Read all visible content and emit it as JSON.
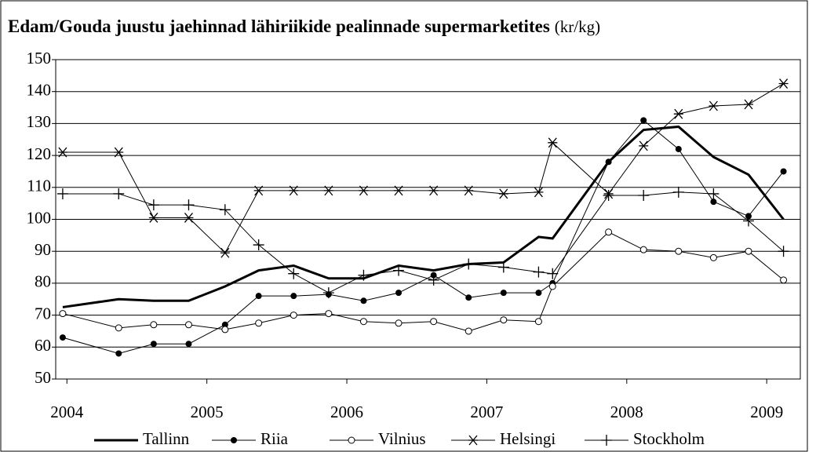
{
  "chart_data": {
    "type": "line",
    "title": "Edam/Gouda juustu jaehinnad lähiriikide pealinnade supermarketites",
    "unit": "(kr/kg)",
    "x": [
      2003.97,
      2004.37,
      2004.62,
      2004.87,
      2005.13,
      2005.37,
      2005.62,
      2005.87,
      2006.12,
      2006.37,
      2006.62,
      2006.87,
      2007.12,
      2007.37,
      2007.47,
      2007.87,
      2008.12,
      2008.37,
      2008.62,
      2008.87,
      2009.12
    ],
    "series": [
      {
        "name": "Tallinn",
        "color": "#000000",
        "marker": "none",
        "line_width": 3,
        "values": [
          72.5,
          75,
          74.5,
          74.5,
          79,
          84,
          85.5,
          81.5,
          81.5,
          85.5,
          84,
          86,
          86.5,
          94.5,
          94,
          118,
          128,
          129,
          119.5,
          114,
          100
        ]
      },
      {
        "name": "Riia",
        "color": "#000000",
        "marker": "filled-circle",
        "line_width": 1,
        "values": [
          63,
          58,
          61,
          61,
          67,
          76,
          76,
          76.5,
          74.5,
          77,
          82.5,
          75.5,
          77,
          77,
          80,
          118,
          131,
          122,
          105.5,
          101,
          115
        ]
      },
      {
        "name": "Vilnius",
        "color": "#000000",
        "marker": "open-circle",
        "line_width": 1,
        "values": [
          70.5,
          66,
          67,
          67,
          65.5,
          67.5,
          70,
          70.5,
          68,
          67.5,
          68,
          65,
          68.5,
          68,
          79,
          96,
          90.5,
          90,
          88,
          90,
          81
        ]
      },
      {
        "name": "Helsingi",
        "color": "#000000",
        "marker": "asterisk",
        "line_width": 1,
        "values": [
          121,
          121,
          100.5,
          100.5,
          89.5,
          109,
          109,
          109,
          109,
          109,
          109,
          109,
          108,
          108.5,
          124,
          108,
          123,
          133,
          135.5,
          136,
          142.5
        ]
      },
      {
        "name": "Stockholm",
        "color": "#000000",
        "marker": "plus",
        "line_width": 1,
        "values": [
          108,
          108,
          104.5,
          104.5,
          103,
          92,
          83,
          77,
          82.5,
          84,
          81,
          86,
          85,
          83.5,
          83,
          107.5,
          107.5,
          108.5,
          108,
          99.5,
          90
        ]
      }
    ],
    "xlim": [
      2003.92,
      2009.24
    ],
    "xticks": [
      2004,
      2005,
      2006,
      2007,
      2008,
      2009
    ],
    "ylim": [
      50,
      150
    ],
    "yticks": [
      50,
      60,
      70,
      80,
      90,
      100,
      110,
      120,
      130,
      140,
      150
    ],
    "grid": true,
    "legend": "bottom"
  }
}
